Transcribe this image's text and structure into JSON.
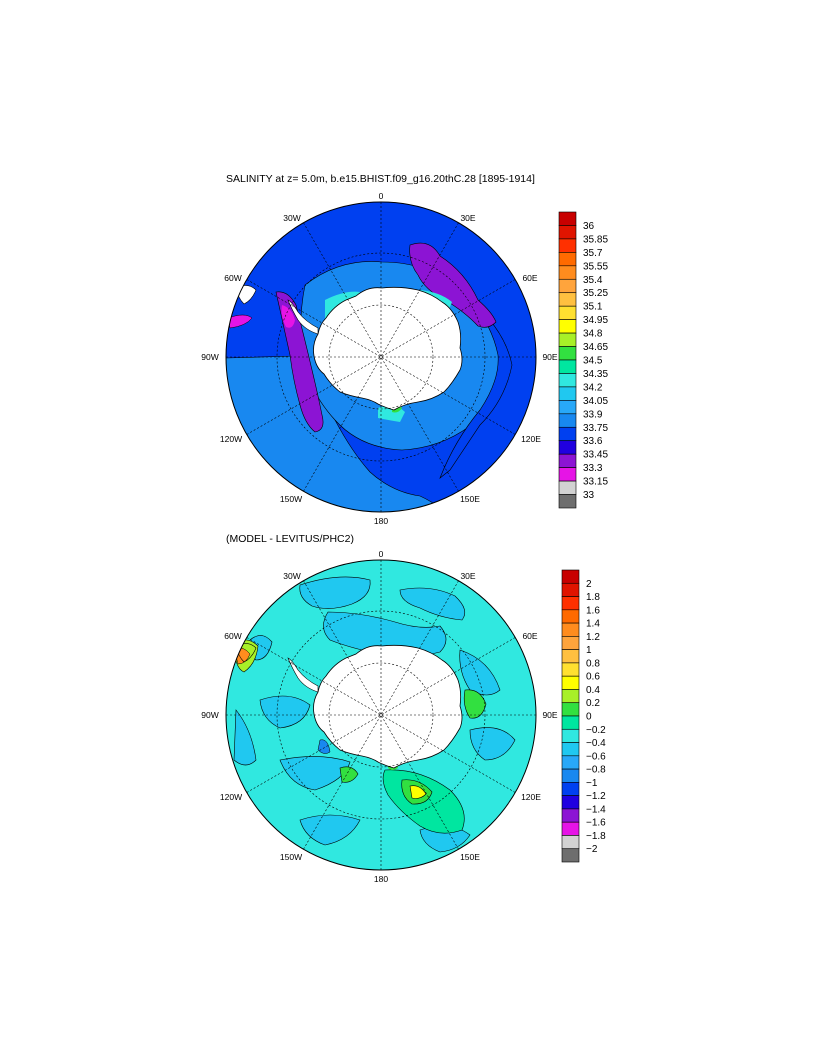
{
  "panel_top": {
    "title": "SALINITY at z=   5.0m, b.e15.BHIST.f09_g16.20thC.28 [1895-1914]",
    "lon_labels": [
      "0",
      "30E",
      "60E",
      "90E",
      "120E",
      "150E",
      "180",
      "150W",
      "120W",
      "90W",
      "60W",
      "30W"
    ],
    "colorbar": {
      "labels": [
        "36",
        "35.85",
        "35.7",
        "35.55",
        "35.4",
        "35.25",
        "35.1",
        "34.95",
        "34.8",
        "34.65",
        "34.5",
        "34.35",
        "34.2",
        "34.05",
        "33.9",
        "33.75",
        "33.6",
        "33.45",
        "33.3",
        "33.15",
        "33"
      ],
      "colors": [
        "#c80000",
        "#e01400",
        "#ff3000",
        "#ff6a00",
        "#ff8c1e",
        "#ffa43c",
        "#ffc040",
        "#ffe030",
        "#ffff00",
        "#a8f028",
        "#32e040",
        "#00e6a0",
        "#30e8e0",
        "#20c8f0",
        "#28a8f8",
        "#1888f0",
        "#0040f0",
        "#2000e0",
        "#8c14d4",
        "#e614e6",
        "#d2d2d2",
        "#6e6e6e"
      ]
    }
  },
  "panel_bottom": {
    "title": "(MODEL - LEVITUS/PHC2)",
    "lon_labels": [
      "0",
      "30E",
      "60E",
      "90E",
      "120E",
      "150E",
      "180",
      "150W",
      "120W",
      "90W",
      "60W",
      "30W"
    ],
    "colorbar": {
      "labels": [
        "2",
        "1.8",
        "1.6",
        "1.4",
        "1.2",
        "1",
        "0.8",
        "0.6",
        "0.4",
        "0.2",
        "0",
        "−0.2",
        "−0.4",
        "−0.6",
        "−0.8",
        "−1",
        "−1.2",
        "−1.4",
        "−1.6",
        "−1.8",
        "−2"
      ],
      "colors": [
        "#c80000",
        "#e01400",
        "#ff3000",
        "#ff6a00",
        "#ff8c1e",
        "#ffa43c",
        "#ffc040",
        "#ffe030",
        "#ffff00",
        "#a8f028",
        "#32e040",
        "#00e6a0",
        "#30e8e0",
        "#20c8f0",
        "#28a8f8",
        "#1888f0",
        "#0040f0",
        "#2000e0",
        "#8c14d4",
        "#e614e6",
        "#d2d2d2",
        "#6e6e6e"
      ]
    }
  }
}
